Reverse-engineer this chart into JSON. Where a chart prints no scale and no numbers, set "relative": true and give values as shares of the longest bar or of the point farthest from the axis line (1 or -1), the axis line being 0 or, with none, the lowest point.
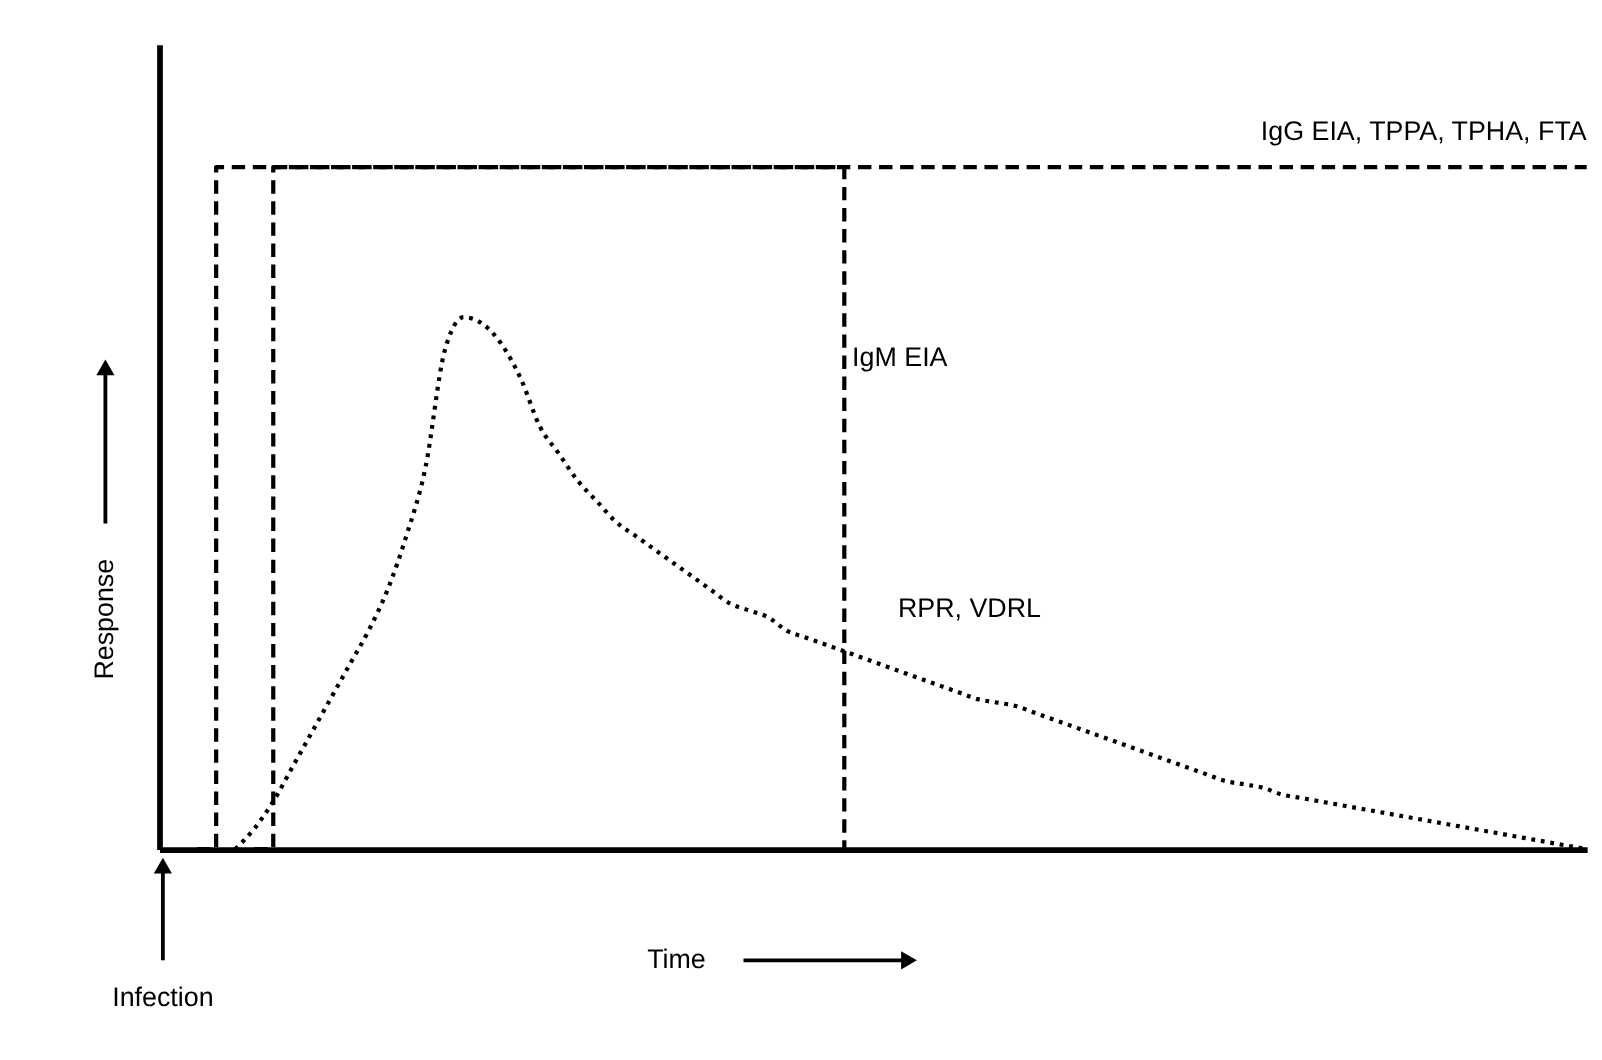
{
  "chart_data": {
    "type": "line",
    "relative": true,
    "xlabel": "Time",
    "ylabel": "Response",
    "annotations": [
      "Infection"
    ],
    "legend": false,
    "grid": false,
    "marker": "none",
    "categories": [
      null,
      null,
      null,
      null,
      null,
      null,
      null,
      null,
      null,
      null,
      null,
      null,
      null,
      null,
      null,
      null,
      null,
      null,
      null,
      null,
      null,
      null,
      null,
      null,
      null,
      null,
      null,
      null,
      null,
      null,
      null,
      null,
      null,
      null,
      null,
      null,
      null,
      null,
      null,
      null,
      null,
      null,
      null,
      null,
      null,
      null,
      null,
      null,
      null,
      null,
      null,
      null,
      null,
      null,
      null,
      null,
      null,
      null,
      null,
      null,
      null,
      null,
      null,
      null,
      null,
      null,
      null,
      null,
      null,
      null,
      null,
      null,
      null,
      null,
      null,
      null
    ],
    "series": [
      {
        "name": "IgG EIA, TPPA, TPHA, FTA",
        "type": "step",
        "color": "#000000",
        "line_style": "dashed",
        "values": [
          null,
          null,
          null,
          null,
          null,
          0,
          1,
          1,
          1,
          1,
          1,
          1,
          1,
          1,
          1,
          1,
          1,
          1,
          1,
          1,
          1,
          1,
          1,
          1,
          1,
          1,
          1,
          1,
          1,
          1,
          1,
          1,
          1,
          1,
          1,
          1,
          1,
          1,
          1,
          1,
          1,
          1,
          1,
          1,
          1,
          1,
          1,
          1,
          1,
          1,
          1,
          1,
          1,
          1,
          1,
          1,
          1,
          1,
          1,
          1,
          1,
          1,
          1,
          1,
          1,
          1,
          1,
          1,
          1,
          1,
          1,
          1,
          1,
          1,
          1,
          1
        ]
      },
      {
        "name": "IgM EIA",
        "type": "step",
        "color": "#000000",
        "line_style": "dashed",
        "values": [
          null,
          null,
          0,
          1,
          1,
          1,
          1,
          1,
          1,
          1,
          1,
          1,
          1,
          1,
          1,
          1,
          1,
          1,
          1,
          1,
          1,
          1,
          1,
          1,
          1,
          1,
          1,
          1,
          1,
          1,
          1,
          1,
          1,
          1,
          1,
          1,
          0,
          null,
          null,
          null,
          null,
          null,
          null,
          null,
          null,
          null,
          null,
          null,
          null,
          null,
          null,
          null,
          null,
          null,
          null,
          null,
          null,
          null,
          null,
          null,
          null,
          null,
          null,
          null,
          null,
          null,
          null,
          null,
          null,
          null,
          null,
          null,
          null,
          null,
          null,
          null
        ]
      },
      {
        "name": "RPR, VDRL",
        "color": "#000000",
        "line_style": "dotted",
        "values": [
          null,
          null,
          null,
          null,
          0,
          0.03,
          0.07,
          0.12,
          0.17,
          0.22,
          0.27,
          0.32,
          0.38,
          0.46,
          0.56,
          0.73,
          0.78,
          0.77,
          0.74,
          0.69,
          0.62,
          0.58,
          0.54,
          0.51,
          0.48,
          0.46,
          0.44,
          0.42,
          0.4,
          0.38,
          0.36,
          0.35,
          0.34,
          0.32,
          0.31,
          0.3,
          0.29,
          0.28,
          0.27,
          0.26,
          0.25,
          0.24,
          0.23,
          0.22,
          0.215,
          0.21,
          0.2,
          0.19,
          0.18,
          0.17,
          0.16,
          0.15,
          0.14,
          0.13,
          0.12,
          0.11,
          0.1,
          0.095,
          0.09,
          0.08,
          0.075,
          0.07,
          0.065,
          0.06,
          0.055,
          0.05,
          0.045,
          0.04,
          0.035,
          0.03,
          0.025,
          0.02,
          0.015,
          0.01,
          0.005,
          0
        ]
      }
    ]
  }
}
